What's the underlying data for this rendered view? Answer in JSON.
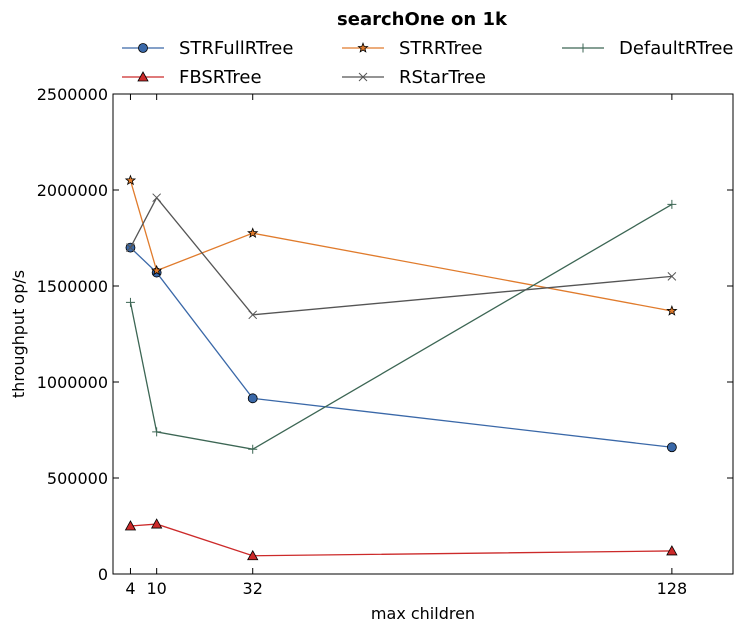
{
  "chart_data": {
    "type": "line",
    "title": "searchOne on 1k",
    "xlabel": "max children",
    "ylabel": "throughput op/s",
    "xlim": [
      0,
      142
    ],
    "ylim": [
      0,
      2500000
    ],
    "xticks": [
      4,
      10,
      32,
      128
    ],
    "xtick_labels": [
      "4",
      "10",
      "32",
      "128"
    ],
    "yticks": [
      0,
      500000,
      1000000,
      1500000,
      2000000,
      2500000
    ],
    "ytick_labels": [
      "0",
      "500000",
      "1000000",
      "1500000",
      "2000000",
      "2500000"
    ],
    "legend_position": "top",
    "series": [
      {
        "name": "STRFullRTree",
        "color": "#3a68a8",
        "marker": "circle",
        "x": [
          4,
          10,
          32,
          128
        ],
        "values": [
          1700000,
          1570000,
          915000,
          660000
        ]
      },
      {
        "name": "STRRTree",
        "color": "#e07b2c",
        "marker": "star",
        "x": [
          4,
          10,
          32,
          128
        ],
        "values": [
          2050000,
          1580000,
          1775000,
          1370000
        ]
      },
      {
        "name": "DefaultRTree",
        "color": "#3c6654",
        "marker": "plus",
        "x": [
          4,
          10,
          32,
          128
        ],
        "values": [
          1415000,
          740000,
          650000,
          1925000
        ]
      },
      {
        "name": "FBSRTree",
        "color": "#cc2a2a",
        "marker": "triangle",
        "x": [
          4,
          10,
          32,
          128
        ],
        "values": [
          250000,
          260000,
          95000,
          120000
        ]
      },
      {
        "name": "RStarTree",
        "color": "#555555",
        "marker": "x",
        "x": [
          4,
          10,
          32,
          128
        ],
        "values": [
          1700000,
          1960000,
          1350000,
          1550000
        ]
      }
    ]
  }
}
